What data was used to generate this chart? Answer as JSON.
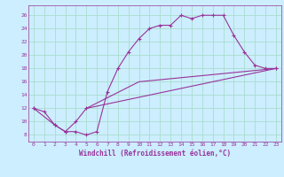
{
  "xlabel": "Windchill (Refroidissement éolien,°C)",
  "background_color": "#cceeff",
  "grid_color": "#aaddcc",
  "line_color": "#993399",
  "xlim": [
    -0.5,
    23.5
  ],
  "ylim": [
    7,
    27.5
  ],
  "xticks": [
    0,
    1,
    2,
    3,
    4,
    5,
    6,
    7,
    8,
    9,
    10,
    11,
    12,
    13,
    14,
    15,
    16,
    17,
    18,
    19,
    20,
    21,
    22,
    23
  ],
  "yticks": [
    8,
    10,
    12,
    14,
    16,
    18,
    20,
    22,
    24,
    26
  ],
  "line1_x": [
    0,
    1,
    2,
    3,
    4,
    5,
    6,
    7,
    8,
    9,
    10,
    11,
    12,
    13,
    14,
    15,
    16,
    17,
    18,
    19,
    20,
    21,
    22,
    23
  ],
  "line1_y": [
    12,
    11.5,
    9.5,
    8.5,
    8.5,
    8.0,
    8.5,
    14.5,
    18.0,
    20.5,
    22.5,
    24.0,
    24.5,
    24.5,
    26.0,
    25.5,
    26.0,
    26.0,
    26.0,
    23.0,
    20.5,
    18.5,
    18.0,
    18.0
  ],
  "line2_x": [
    0,
    2,
    3,
    4,
    5,
    23
  ],
  "line2_y": [
    12,
    9.5,
    8.5,
    10.0,
    12.0,
    18.0
  ],
  "line3_x": [
    5,
    10,
    23
  ],
  "line3_y": [
    12.0,
    16.0,
    18.0
  ],
  "tick_fontsize": 4.5,
  "xlabel_fontsize": 5.5,
  "marker_size": 3.0,
  "line_width": 0.8
}
